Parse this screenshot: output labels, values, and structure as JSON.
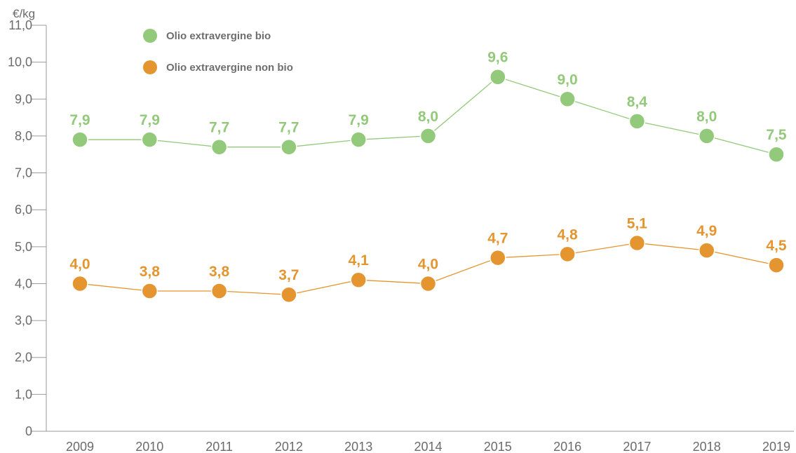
{
  "chart_data": {
    "type": "line",
    "ylabel": "€/kg",
    "ylim": [
      0,
      11
    ],
    "yticks": [
      "0",
      "1,0",
      "2,0",
      "3,0",
      "4,0",
      "5,0",
      "6,0",
      "7,0",
      "8,0",
      "9,0",
      "10,0",
      "11,0"
    ],
    "categories": [
      "2009",
      "2010",
      "2011",
      "2012",
      "2013",
      "2014",
      "2015",
      "2016",
      "2017",
      "2018",
      "2019"
    ],
    "legend_position": "top-left",
    "grid": false,
    "series": [
      {
        "name": "Olio extravergine bio",
        "color": "#93c97b",
        "values": [
          7.9,
          7.9,
          7.7,
          7.7,
          7.9,
          8.0,
          9.6,
          9.0,
          8.4,
          8.0,
          7.5
        ],
        "labels": [
          "7,9",
          "7,9",
          "7,7",
          "7,7",
          "7,9",
          "8,0",
          "9,6",
          "9,0",
          "8,4",
          "8,0",
          "7,5"
        ]
      },
      {
        "name": "Olio extravergine non bio",
        "color": "#e5952f",
        "values": [
          4.0,
          3.8,
          3.8,
          3.7,
          4.1,
          4.0,
          4.7,
          4.8,
          5.1,
          4.9,
          4.5
        ],
        "labels": [
          "4,0",
          "3,8",
          "3,8",
          "3,7",
          "4,1",
          "4,0",
          "4,7",
          "4,8",
          "5,1",
          "4,9",
          "4,5"
        ]
      }
    ]
  }
}
